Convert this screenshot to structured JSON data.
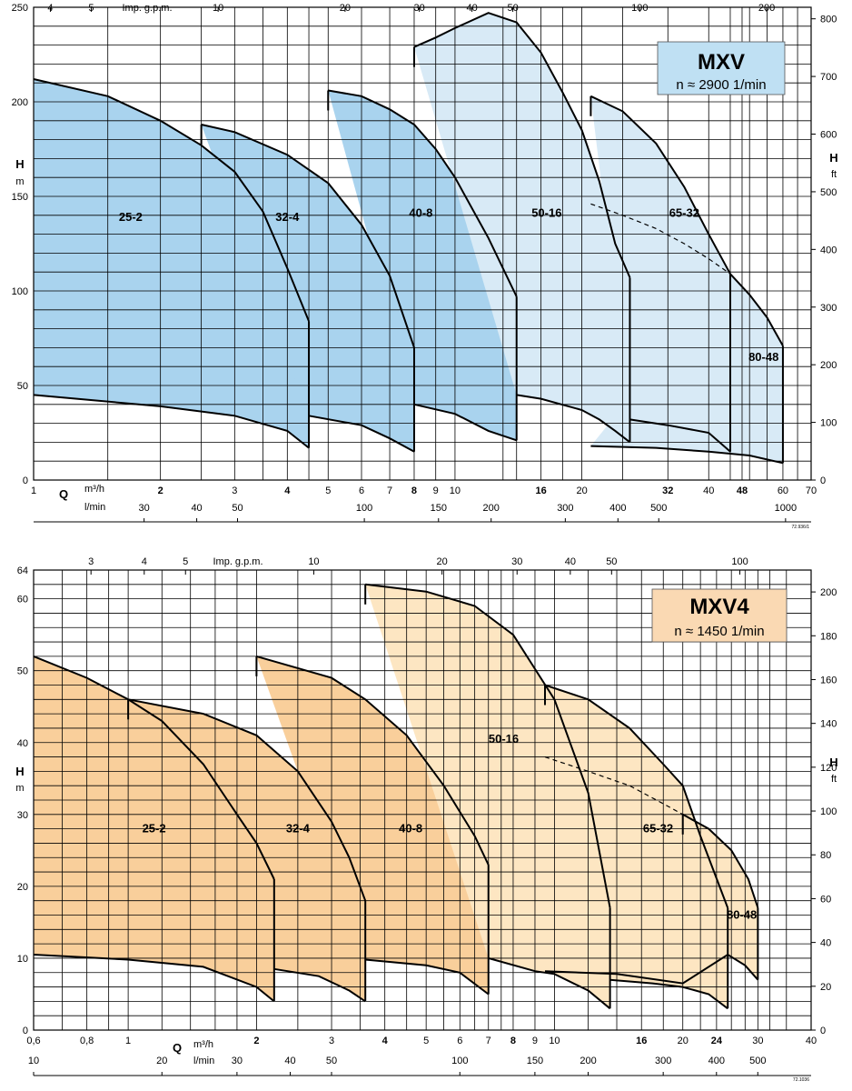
{
  "chart_data": [
    {
      "type": "area",
      "title": "MXV",
      "subtitle": "n ≈ 2900 1/min",
      "left_axis": {
        "symbol": "H",
        "unit": "m",
        "range": [
          0,
          250
        ],
        "ticks": [
          "0",
          "50",
          "100",
          "150",
          "200",
          "250"
        ]
      },
      "right_axis": {
        "symbol": "H",
        "unit": "ft",
        "range": [
          0,
          820
        ],
        "ticks": [
          "0",
          "100",
          "200",
          "300",
          "400",
          "500",
          "600",
          "700",
          "800"
        ]
      },
      "x_axis": {
        "symbol": "Q",
        "unit": "m³/h",
        "scale": "log",
        "range": [
          1,
          70
        ],
        "ticks": [
          {
            "v": 1,
            "t": "1"
          },
          {
            "v": 2,
            "t": "2",
            "bold": true
          },
          {
            "v": 3,
            "t": "3"
          },
          {
            "v": 4,
            "t": "4",
            "bold": true
          },
          {
            "v": 5,
            "t": "5"
          },
          {
            "v": 6,
            "t": "6"
          },
          {
            "v": 7,
            "t": "7"
          },
          {
            "v": 8,
            "t": "8",
            "bold": true
          },
          {
            "v": 9,
            "t": "9"
          },
          {
            "v": 10,
            "t": "10"
          },
          {
            "v": 16,
            "t": "16",
            "bold": true
          },
          {
            "v": 20,
            "t": "20"
          },
          {
            "v": 32,
            "t": "32",
            "bold": true
          },
          {
            "v": 40,
            "t": "40"
          },
          {
            "v": 48,
            "t": "48",
            "bold": true
          },
          {
            "v": 60,
            "t": "60"
          },
          {
            "v": 70,
            "t": "70"
          }
        ]
      },
      "lmin_axis": {
        "unit": "l/min",
        "ticks": [
          "30",
          "40",
          "50",
          "100",
          "150",
          "200",
          "300",
          "400",
          "500",
          "1000"
        ],
        "values": [
          30,
          40,
          50,
          100,
          150,
          200,
          300,
          400,
          500,
          1000
        ]
      },
      "gpm_axis": {
        "unit": "Imp. g.p.m.",
        "ticks": [
          "4",
          "5",
          "10",
          "20",
          "30",
          "40",
          "50",
          "100",
          "200"
        ],
        "values": [
          4,
          5,
          10,
          20,
          30,
          40,
          50,
          100,
          200
        ]
      },
      "ref_code": "72.936/1",
      "series": [
        {
          "name": "25-2",
          "label_at": [
            1.7,
            139
          ],
          "bounds": [
            1,
            4.5
          ],
          "top": [
            [
              1,
              212
            ],
            [
              1.5,
              203
            ],
            [
              2,
              190
            ],
            [
              2.5,
              177
            ],
            [
              3,
              163
            ],
            [
              3.5,
              142
            ],
            [
              4,
              112
            ],
            [
              4.5,
              84
            ]
          ],
          "bottom": [
            [
              1,
              45
            ],
            [
              2,
              39
            ],
            [
              3,
              34
            ],
            [
              4,
              26
            ],
            [
              4.5,
              17
            ]
          ]
        },
        {
          "name": "32-4",
          "label_at": [
            4,
            139
          ],
          "bounds": [
            2.5,
            8
          ],
          "top": [
            [
              2.5,
              188
            ],
            [
              3,
              184
            ],
            [
              4,
              172
            ],
            [
              5,
              157
            ],
            [
              6,
              135
            ],
            [
              7,
              108
            ],
            [
              8,
              70
            ]
          ],
          "bottom": [
            [
              4.5,
              34
            ],
            [
              6,
              29
            ],
            [
              7,
              22
            ],
            [
              8,
              15
            ]
          ]
        },
        {
          "name": "40-8",
          "label_at": [
            8.3,
            141
          ],
          "bounds": [
            5,
            14
          ],
          "top": [
            [
              5,
              206
            ],
            [
              6,
              203
            ],
            [
              7,
              196
            ],
            [
              8,
              188
            ],
            [
              9,
              175
            ],
            [
              10,
              160
            ],
            [
              12,
              128
            ],
            [
              14,
              97
            ]
          ],
          "bottom": [
            [
              8,
              40
            ],
            [
              10,
              35
            ],
            [
              12,
              26
            ],
            [
              14,
              21
            ]
          ]
        },
        {
          "name": "50-16",
          "label_at": [
            16.5,
            141
          ],
          "bounds": [
            8,
            26
          ],
          "top": [
            [
              8,
              229
            ],
            [
              9,
              234
            ],
            [
              10,
              239
            ],
            [
              12,
              247
            ],
            [
              14,
              242
            ],
            [
              16,
              226
            ],
            [
              18,
              205
            ],
            [
              20,
              185
            ],
            [
              22,
              158
            ],
            [
              24,
              125
            ],
            [
              26,
              107
            ]
          ],
          "bottom": [
            [
              14,
              45
            ],
            [
              16,
              43
            ],
            [
              20,
              37
            ],
            [
              22,
              32
            ],
            [
              24,
              26
            ],
            [
              26,
              20
            ]
          ]
        },
        {
          "name": "65-32",
          "label_at": [
            35,
            141
          ],
          "bounds": [
            21,
            45
          ],
          "top": [
            [
              21,
              203
            ],
            [
              25,
              195
            ],
            [
              30,
              178
            ],
            [
              35,
              155
            ],
            [
              40,
              130
            ],
            [
              45,
              109
            ]
          ],
          "bottom": [
            [
              26,
              32
            ],
            [
              32,
              29
            ],
            [
              40,
              25
            ],
            [
              45,
              15
            ]
          ],
          "dashed": [
            [
              21,
              146
            ],
            [
              25,
              140
            ],
            [
              30,
              133
            ],
            [
              35,
              125
            ],
            [
              40,
              117
            ],
            [
              45,
              109
            ]
          ]
        },
        {
          "name": "80-48",
          "label_at": [
            54,
            65
          ],
          "bounds": [
            21,
            60
          ],
          "top": [
            [
              45,
              109
            ],
            [
              50,
              98
            ],
            [
              55,
              86
            ],
            [
              60,
              71
            ]
          ],
          "bottom": [
            [
              21,
              18
            ],
            [
              30,
              17
            ],
            [
              40,
              15
            ],
            [
              50,
              13
            ],
            [
              60,
              9
            ]
          ]
        }
      ]
    },
    {
      "type": "area",
      "title": "MXV4",
      "subtitle": "n ≈ 1450 1/min",
      "left_axis": {
        "symbol": "H",
        "unit": "m",
        "range": [
          0,
          64
        ],
        "ticks": [
          "0",
          "10",
          "20",
          "30",
          "40",
          "50",
          "60",
          "64"
        ]
      },
      "right_axis": {
        "symbol": "H",
        "unit": "ft",
        "range": [
          0,
          210
        ],
        "ticks": [
          "0",
          "20",
          "40",
          "60",
          "80",
          "100",
          "120",
          "140",
          "160",
          "180",
          "200"
        ]
      },
      "x_axis": {
        "symbol": "Q",
        "unit": "m³/h",
        "scale": "log",
        "range": [
          0.6,
          40
        ],
        "ticks": [
          {
            "v": 0.6,
            "t": "0,6"
          },
          {
            "v": 0.8,
            "t": "0,8"
          },
          {
            "v": 1,
            "t": "1"
          },
          {
            "v": 2,
            "t": "2",
            "bold": true
          },
          {
            "v": 3,
            "t": "3"
          },
          {
            "v": 4,
            "t": "4",
            "bold": true
          },
          {
            "v": 5,
            "t": "5"
          },
          {
            "v": 6,
            "t": "6"
          },
          {
            "v": 7,
            "t": "7"
          },
          {
            "v": 8,
            "t": "8",
            "bold": true
          },
          {
            "v": 9,
            "t": "9"
          },
          {
            "v": 10,
            "t": "10"
          },
          {
            "v": 16,
            "t": "16",
            "bold": true
          },
          {
            "v": 20,
            "t": "20"
          },
          {
            "v": 24,
            "t": "24",
            "bold": true
          },
          {
            "v": 30,
            "t": "30"
          },
          {
            "v": 40,
            "t": "40"
          }
        ]
      },
      "lmin_axis": {
        "unit": "l/min",
        "ticks": [
          "10",
          "20",
          "30",
          "40",
          "50",
          "100",
          "150",
          "200",
          "300",
          "400",
          "500"
        ],
        "values": [
          10,
          20,
          30,
          40,
          50,
          100,
          150,
          200,
          300,
          400,
          500
        ]
      },
      "gpm_axis": {
        "unit": "Imp. g.p.m.",
        "ticks": [
          "3",
          "4",
          "5",
          "10",
          "20",
          "30",
          "40",
          "50",
          "100"
        ],
        "values": [
          3,
          4,
          5,
          10,
          20,
          30,
          40,
          50,
          100
        ]
      },
      "ref_code": "72.1036",
      "series": [
        {
          "name": "25-2",
          "label_at": [
            1.15,
            28
          ],
          "bounds": [
            0.6,
            2.2
          ],
          "top": [
            [
              0.6,
              52
            ],
            [
              0.8,
              49
            ],
            [
              1,
              46
            ],
            [
              1.2,
              43
            ],
            [
              1.5,
              37
            ],
            [
              1.8,
              30
            ],
            [
              2,
              26
            ],
            [
              2.2,
              21
            ]
          ],
          "bottom": [
            [
              0.6,
              10.5
            ],
            [
              1,
              9.8
            ],
            [
              1.5,
              8.8
            ],
            [
              2,
              6
            ],
            [
              2.2,
              4
            ]
          ]
        },
        {
          "name": "32-4",
          "label_at": [
            2.5,
            28
          ],
          "bounds": [
            1,
            3.6
          ],
          "top": [
            [
              1,
              46
            ],
            [
              1.5,
              44
            ],
            [
              2,
              41
            ],
            [
              2.5,
              36
            ],
            [
              3,
              29
            ],
            [
              3.3,
              24
            ],
            [
              3.6,
              18
            ]
          ],
          "bottom": [
            [
              2.2,
              8.5
            ],
            [
              2.8,
              7.5
            ],
            [
              3.3,
              5.5
            ],
            [
              3.6,
              4
            ]
          ]
        },
        {
          "name": "40-8",
          "label_at": [
            4.6,
            28
          ],
          "bounds": [
            2,
            7
          ],
          "top": [
            [
              2,
              52
            ],
            [
              3,
              49
            ],
            [
              3.6,
              46
            ],
            [
              4.5,
              41
            ],
            [
              5.5,
              34
            ],
            [
              6.5,
              27
            ],
            [
              7,
              23
            ]
          ],
          "bottom": [
            [
              3.6,
              9.8
            ],
            [
              5,
              9
            ],
            [
              6,
              8
            ],
            [
              7,
              5
            ]
          ]
        },
        {
          "name": "50-16",
          "label_at": [
            7.6,
            40.5
          ],
          "bounds": [
            3.6,
            13.5
          ],
          "top": [
            [
              3.6,
              62
            ],
            [
              5,
              61
            ],
            [
              6.5,
              59
            ],
            [
              8,
              55
            ],
            [
              10,
              46
            ],
            [
              12,
              33
            ],
            [
              13.5,
              17
            ]
          ],
          "bottom": [
            [
              7,
              10
            ],
            [
              9,
              8.2
            ],
            [
              10,
              7.8
            ],
            [
              12,
              5.5
            ],
            [
              13.5,
              3
            ]
          ]
        },
        {
          "name": "65-32",
          "label_at": [
            17.5,
            28
          ],
          "bounds": [
            9.5,
            25.5
          ],
          "top": [
            [
              9.5,
              48
            ],
            [
              12,
              46
            ],
            [
              15,
              42
            ],
            [
              18,
              37
            ],
            [
              20,
              34
            ],
            [
              22,
              27
            ],
            [
              25.5,
              17
            ]
          ],
          "bottom": [
            [
              13.5,
              7
            ],
            [
              17,
              6.5
            ],
            [
              20,
              6
            ],
            [
              23,
              5
            ],
            [
              25.5,
              3
            ]
          ],
          "dashed": [
            [
              9.5,
              38
            ],
            [
              12,
              36
            ],
            [
              15,
              34
            ],
            [
              18,
              31.5
            ],
            [
              20,
              30
            ]
          ]
        },
        {
          "name": "80-48",
          "label_at": [
            27.5,
            16
          ],
          "bounds": [
            9.5,
            30
          ],
          "top": [
            [
              20,
              30
            ],
            [
              23,
              28
            ],
            [
              26,
              25
            ],
            [
              28.5,
              21
            ],
            [
              30,
              17
            ]
          ],
          "bottom": [
            [
              9.5,
              8.2
            ],
            [
              14,
              7.8
            ],
            [
              20,
              6.5
            ],
            [
              25.5,
              10.5
            ],
            [
              28,
              9
            ],
            [
              30,
              7
            ]
          ]
        }
      ]
    }
  ]
}
